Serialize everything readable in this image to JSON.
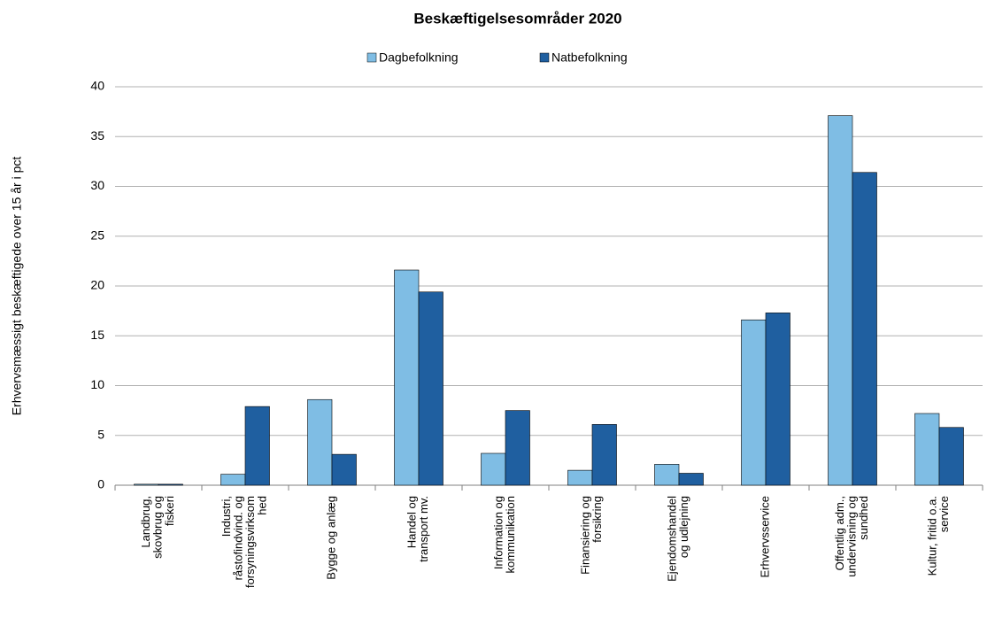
{
  "chart_data": {
    "type": "bar",
    "title": "Beskæftigelsesområder 2020",
    "ylabel": "Erhvervsmæssigt beskæftigede over 15 år i pct",
    "categories": [
      [
        "Landbrug,",
        "skovbrug og",
        "fiskeri"
      ],
      [
        "Industri,",
        "råstofindvind. og",
        "forsyningsvirksom",
        "hed"
      ],
      [
        "Bygge og anlæg"
      ],
      [
        "Handel og",
        "transport mv."
      ],
      [
        "Information og",
        "kommunikation"
      ],
      [
        "Finansiering og",
        "forsikring"
      ],
      [
        "Ejendomshandel",
        "og udlejning"
      ],
      [
        "Erhvervsservice"
      ],
      [
        "Offentlig adm.,",
        "undervisning og",
        "sundhed"
      ],
      [
        "Kultur, fritid o.a.",
        "service"
      ]
    ],
    "series": [
      {
        "name": "Dagbefolkning",
        "color": "#7fbde4",
        "values": [
          0.1,
          1.1,
          8.6,
          21.6,
          3.2,
          1.5,
          2.1,
          16.6,
          37.1,
          7.2
        ]
      },
      {
        "name": "Natbefolkning",
        "color": "#1f5fa0",
        "values": [
          0.1,
          7.9,
          3.1,
          19.4,
          7.5,
          6.1,
          1.2,
          17.3,
          31.4,
          5.8
        ]
      }
    ],
    "ylim": [
      0,
      40
    ],
    "yticks": [
      0,
      5,
      10,
      15,
      20,
      25,
      30,
      35,
      40
    ],
    "grid": true,
    "legend": "top"
  }
}
